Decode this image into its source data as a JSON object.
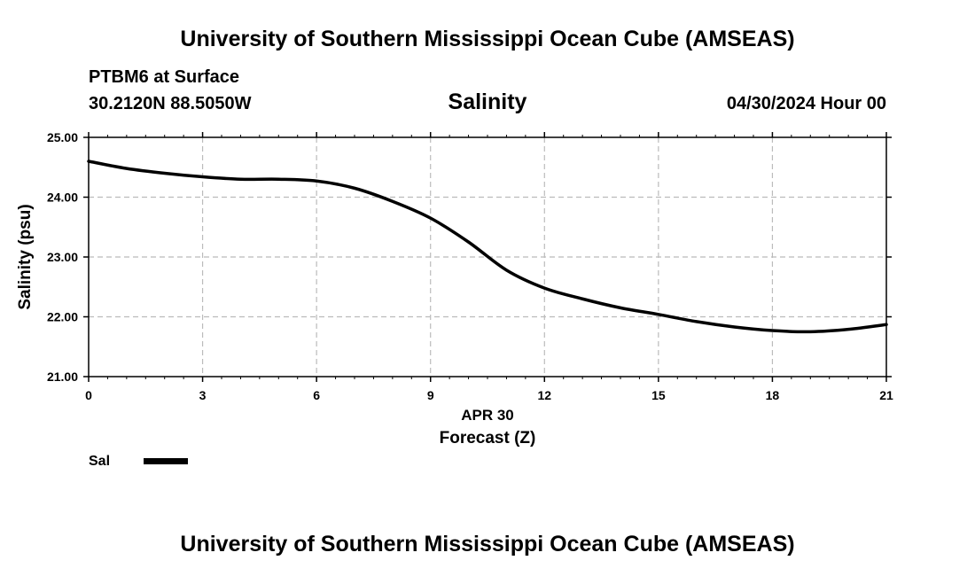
{
  "header": {
    "title_top": "University of Southern Mississippi Ocean Cube (AMSEAS)",
    "station": "PTBM6 at Surface",
    "coords": "30.2120N  88.5050W",
    "chart_title": "Salinity",
    "datetime": "04/30/2024 Hour 00"
  },
  "footer": {
    "title_bottom": "University of Southern Mississippi Ocean Cube (AMSEAS)"
  },
  "legend": {
    "label": "Sal",
    "color": "#000000"
  },
  "colors": {
    "line": "#000000",
    "grid": "#bbbbbb",
    "background": "#ffffff"
  },
  "chart_data": {
    "type": "line",
    "title": "Salinity",
    "xlabel": "Forecast (Z)",
    "xlabel_date": "APR 30",
    "ylabel": "Salinity (psu)",
    "xlim": [
      0,
      21
    ],
    "ylim": [
      21,
      25
    ],
    "xticks": [
      0,
      3,
      6,
      9,
      12,
      15,
      18,
      21
    ],
    "xtick_labels": [
      "0",
      "3",
      "6",
      "9",
      "12",
      "15",
      "18",
      "21"
    ],
    "yticks": [
      21,
      22,
      23,
      24,
      25
    ],
    "ytick_labels": [
      "21.00",
      "22.00",
      "23.00",
      "24.00",
      "25.00"
    ],
    "grid": true,
    "series": [
      {
        "name": "Sal",
        "x": [
          0,
          1,
          2,
          3,
          4,
          5,
          6,
          7,
          8,
          9,
          10,
          11,
          12,
          13,
          14,
          15,
          16,
          17,
          18,
          19,
          20,
          21
        ],
        "values": [
          24.6,
          24.48,
          24.4,
          24.34,
          24.3,
          24.3,
          24.27,
          24.15,
          23.93,
          23.65,
          23.25,
          22.78,
          22.48,
          22.3,
          22.15,
          22.04,
          21.92,
          21.83,
          21.77,
          21.75,
          21.79,
          21.87
        ]
      }
    ]
  }
}
